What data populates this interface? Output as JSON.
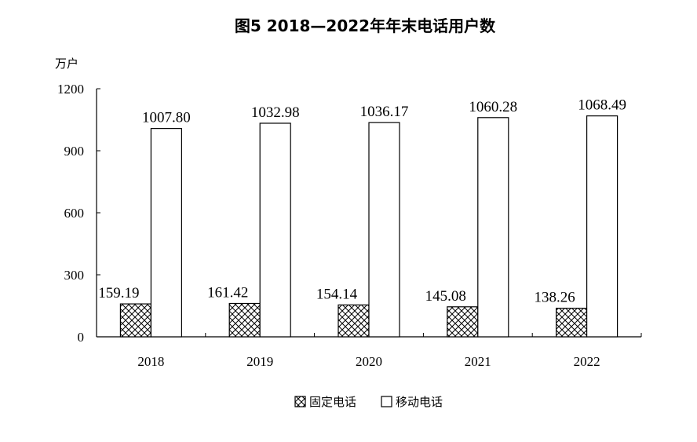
{
  "chart_data": {
    "type": "bar",
    "title": "图5  2018—2022年年末电话用户数",
    "ylabel": "万户",
    "xlabel": "",
    "categories": [
      "2018",
      "2019",
      "2020",
      "2021",
      "2022"
    ],
    "ylim": [
      0,
      1200
    ],
    "yticks": [
      "0",
      "300",
      "600",
      "900",
      "1200"
    ],
    "grid": false,
    "legend_position": "bottom",
    "series": [
      {
        "name": "固定电话",
        "values": [
          159.19,
          161.42,
          154.14,
          145.08,
          138.26
        ],
        "labels": [
          "159.19",
          "161.42",
          "154.14",
          "145.08",
          "138.26"
        ],
        "fill": "crosshatch"
      },
      {
        "name": "移动电话",
        "values": [
          1007.8,
          1032.98,
          1036.17,
          1060.28,
          1068.49
        ],
        "labels": [
          "1007.80",
          "1032.98",
          "1036.17",
          "1060.28",
          "1068.49"
        ],
        "fill": "white"
      }
    ]
  }
}
